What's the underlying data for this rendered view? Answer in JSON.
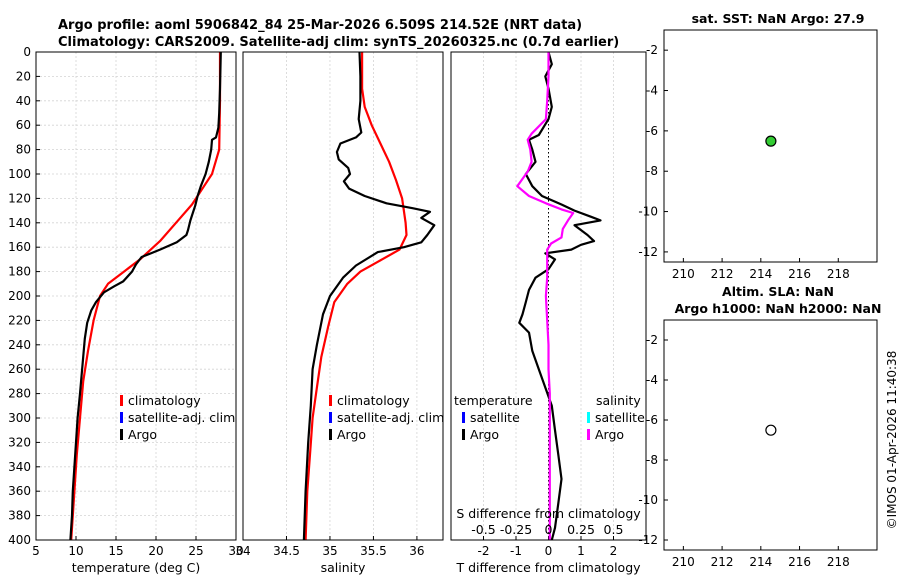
{
  "page": {
    "title_line1": "Argo profile: aoml 5906842_84 25-Mar-2026 6.509S 214.52E (NRT data)",
    "title_line2": "Climatology: CARS2009. Satellite-adj clim: synTS_20260325.nc (0.7d earlier)",
    "timestamp": "©IMOS 01-Apr-2026 11:40:38"
  },
  "colors": {
    "argo": "#000000",
    "climatology": "#ff0000",
    "satellite": "#0000ff",
    "salinity_diff": "#ff00ff",
    "satellite_sal": "#00ffff",
    "sst_marker": "#33cc33"
  },
  "chart_data": [
    {
      "id": "temperature",
      "type": "line",
      "xlabel": "temperature (deg C)",
      "ylabel": "",
      "xlim": [
        5,
        30
      ],
      "ylim": [
        400,
        0
      ],
      "x_ticks": [
        5,
        10,
        15,
        20,
        25,
        30
      ],
      "y_ticks": [
        0,
        20,
        40,
        60,
        80,
        100,
        120,
        140,
        160,
        180,
        200,
        220,
        240,
        260,
        280,
        300,
        320,
        340,
        360,
        380,
        400
      ],
      "legend": [
        "climatology",
        "satellite-adj. clim",
        "Argo"
      ],
      "series": [
        {
          "name": "climatology",
          "points": [
            [
              28.0,
              0
            ],
            [
              28.0,
              40
            ],
            [
              27.9,
              80
            ],
            [
              27.0,
              100
            ],
            [
              26.0,
              110
            ],
            [
              24.5,
              125
            ],
            [
              22.5,
              140
            ],
            [
              20.5,
              155
            ],
            [
              18.0,
              170
            ],
            [
              16.0,
              180
            ],
            [
              14.0,
              190
            ],
            [
              13.0,
              200
            ],
            [
              12.2,
              220
            ],
            [
              11.5,
              245
            ],
            [
              10.9,
              270
            ],
            [
              10.5,
              300
            ],
            [
              10.1,
              330
            ],
            [
              9.8,
              360
            ],
            [
              9.6,
              380
            ],
            [
              9.4,
              400
            ]
          ]
        },
        {
          "name": "Argo",
          "points": [
            [
              28.1,
              0
            ],
            [
              28.0,
              30
            ],
            [
              27.9,
              50
            ],
            [
              27.8,
              62
            ],
            [
              27.5,
              70
            ],
            [
              27.0,
              72
            ],
            [
              26.9,
              80
            ],
            [
              26.6,
              90
            ],
            [
              26.2,
              100
            ],
            [
              25.6,
              110
            ],
            [
              25.2,
              118
            ],
            [
              24.9,
              126
            ],
            [
              24.6,
              132
            ],
            [
              24.3,
              138
            ],
            [
              24.0,
              146
            ],
            [
              23.8,
              150
            ],
            [
              22.6,
              156
            ],
            [
              20.5,
              162
            ],
            [
              19.0,
              166
            ],
            [
              18.2,
              168
            ],
            [
              17.5,
              174
            ],
            [
              17.0,
              180
            ],
            [
              15.9,
              188
            ],
            [
              14.8,
              192
            ],
            [
              13.5,
              197
            ],
            [
              12.5,
              205
            ],
            [
              11.9,
              212
            ],
            [
              11.4,
              222
            ],
            [
              11.1,
              235
            ],
            [
              10.9,
              250
            ],
            [
              10.7,
              265
            ],
            [
              10.5,
              280
            ],
            [
              10.2,
              300
            ],
            [
              10.0,
              320
            ],
            [
              9.8,
              340
            ],
            [
              9.6,
              360
            ],
            [
              9.5,
              380
            ],
            [
              9.3,
              400
            ]
          ]
        }
      ]
    },
    {
      "id": "salinity",
      "type": "line",
      "xlabel": "salinity",
      "xlim": [
        34,
        36.3
      ],
      "ylim": [
        400,
        0
      ],
      "x_ticks": [
        34,
        34.5,
        35,
        35.5,
        36
      ],
      "legend": [
        "climatology",
        "satellite-adj. clim",
        "Argo"
      ],
      "series": [
        {
          "name": "climatology",
          "points": [
            [
              35.37,
              0
            ],
            [
              35.37,
              30
            ],
            [
              35.4,
              45
            ],
            [
              35.48,
              60
            ],
            [
              35.58,
              75
            ],
            [
              35.68,
              90
            ],
            [
              35.76,
              105
            ],
            [
              35.83,
              120
            ],
            [
              35.87,
              140
            ],
            [
              35.88,
              150
            ],
            [
              35.8,
              162
            ],
            [
              35.55,
              172
            ],
            [
              35.35,
              180
            ],
            [
              35.2,
              190
            ],
            [
              35.05,
              205
            ],
            [
              34.98,
              225
            ],
            [
              34.9,
              250
            ],
            [
              34.85,
              275
            ],
            [
              34.8,
              300
            ],
            [
              34.77,
              330
            ],
            [
              34.74,
              360
            ],
            [
              34.72,
              400
            ]
          ]
        },
        {
          "name": "Argo",
          "points": [
            [
              35.34,
              0
            ],
            [
              35.35,
              20
            ],
            [
              35.35,
              40
            ],
            [
              35.33,
              55
            ],
            [
              35.36,
              66
            ],
            [
              35.3,
              70
            ],
            [
              35.12,
              75
            ],
            [
              35.08,
              82
            ],
            [
              35.1,
              88
            ],
            [
              35.21,
              95
            ],
            [
              35.23,
              100
            ],
            [
              35.16,
              106
            ],
            [
              35.22,
              112
            ],
            [
              35.4,
              118
            ],
            [
              35.65,
              124
            ],
            [
              35.95,
              128
            ],
            [
              36.15,
              131
            ],
            [
              36.05,
              136
            ],
            [
              36.2,
              142
            ],
            [
              36.12,
              150
            ],
            [
              36.05,
              156
            ],
            [
              35.85,
              160
            ],
            [
              35.55,
              164
            ],
            [
              35.3,
              175
            ],
            [
              35.15,
              185
            ],
            [
              35.0,
              200
            ],
            [
              34.92,
              215
            ],
            [
              34.85,
              240
            ],
            [
              34.8,
              260
            ],
            [
              34.78,
              290
            ],
            [
              34.75,
              320
            ],
            [
              34.72,
              360
            ],
            [
              34.7,
              400
            ]
          ]
        }
      ]
    },
    {
      "id": "difference",
      "type": "line",
      "xlabel": "T difference from climatology",
      "x2label": "S difference from climatology",
      "xlim": [
        -3,
        3
      ],
      "x2lim": [
        -0.75,
        0.75
      ],
      "ylim": [
        400,
        0
      ],
      "x_ticks": [
        -2,
        -1,
        0,
        1,
        2
      ],
      "x2_ticks": [
        -0.5,
        -0.25,
        0,
        0.25,
        0.5
      ],
      "x2_tick_labels": [
        "-0.5",
        "-0.25",
        "0",
        "0.25",
        "0.5"
      ],
      "legend_temperature_title": "temperature",
      "legend_salinity_title": "salinity",
      "legend": [
        "satellite",
        "Argo",
        "satellite",
        "Argo"
      ],
      "series": [
        {
          "name": "T difference (Argo)",
          "axis": "T",
          "points": [
            [
              0.0,
              0
            ],
            [
              0.1,
              10
            ],
            [
              -0.1,
              20
            ],
            [
              0.0,
              30
            ],
            [
              0.1,
              45
            ],
            [
              0.0,
              55
            ],
            [
              -0.3,
              68
            ],
            [
              -0.6,
              72
            ],
            [
              -0.5,
              80
            ],
            [
              -0.4,
              90
            ],
            [
              -0.7,
              100
            ],
            [
              -0.5,
              110
            ],
            [
              -0.2,
              118
            ],
            [
              0.4,
              125
            ],
            [
              0.8,
              130
            ],
            [
              1.3,
              135
            ],
            [
              1.6,
              138
            ],
            [
              0.8,
              142
            ],
            [
              1.2,
              150
            ],
            [
              1.4,
              155
            ],
            [
              1.0,
              158
            ],
            [
              0.7,
              162
            ],
            [
              -0.1,
              165
            ],
            [
              0.2,
              170
            ],
            [
              0.0,
              178
            ],
            [
              -0.4,
              185
            ],
            [
              -0.6,
              195
            ],
            [
              -0.7,
              205
            ],
            [
              -0.8,
              215
            ],
            [
              -0.9,
              222
            ],
            [
              -0.6,
              230
            ],
            [
              -0.5,
              245
            ],
            [
              -0.3,
              260
            ],
            [
              -0.1,
              275
            ],
            [
              0.1,
              290
            ],
            [
              0.2,
              310
            ],
            [
              0.3,
              330
            ],
            [
              0.4,
              350
            ],
            [
              0.3,
              370
            ],
            [
              0.2,
              390
            ],
            [
              0.1,
              400
            ]
          ]
        },
        {
          "name": "S difference (Argo)",
          "axis": "S",
          "points": [
            [
              0.0,
              0
            ],
            [
              0.0,
              20
            ],
            [
              -0.01,
              40
            ],
            [
              -0.02,
              55
            ],
            [
              -0.13,
              67
            ],
            [
              -0.16,
              72
            ],
            [
              -0.14,
              80
            ],
            [
              -0.13,
              90
            ],
            [
              -0.16,
              98
            ],
            [
              -0.2,
              104
            ],
            [
              -0.24,
              110
            ],
            [
              -0.15,
              118
            ],
            [
              -0.02,
              124
            ],
            [
              0.1,
              129
            ],
            [
              0.19,
              132
            ],
            [
              0.15,
              138
            ],
            [
              0.11,
              145
            ],
            [
              0.1,
              152
            ],
            [
              0.02,
              157
            ],
            [
              -0.01,
              162
            ],
            [
              -0.01,
              170
            ],
            [
              -0.01,
              185
            ],
            [
              -0.02,
              200
            ],
            [
              -0.01,
              220
            ],
            [
              0.0,
              240
            ],
            [
              0.0,
              260
            ],
            [
              0.01,
              280
            ],
            [
              0.01,
              300
            ],
            [
              0.01,
              320
            ],
            [
              0.01,
              340
            ],
            [
              0.01,
              360
            ],
            [
              0.01,
              380
            ],
            [
              0.01,
              400
            ]
          ]
        }
      ]
    },
    {
      "id": "sst",
      "type": "scatter",
      "title": "sat. SST: NaN Argo: 27.9",
      "xlim": [
        209,
        220
      ],
      "ylim": [
        -12.5,
        -1
      ],
      "x_ticks": [
        210,
        212,
        214,
        216,
        218
      ],
      "y_ticks": [
        -2,
        -4,
        -6,
        -8,
        -10,
        -12
      ],
      "points": [
        {
          "x": 214.52,
          "y": -6.509,
          "fill": "green"
        }
      ]
    },
    {
      "id": "sla",
      "type": "scatter",
      "title_line1": "Altim. SLA: NaN",
      "title_line2": "Argo h1000: NaN h2000: NaN",
      "xlim": [
        209,
        220
      ],
      "ylim": [
        -12.5,
        -1
      ],
      "x_ticks": [
        210,
        212,
        214,
        216,
        218
      ],
      "y_ticks": [
        -2,
        -4,
        -6,
        -8,
        -10,
        -12
      ],
      "points": [
        {
          "x": 214.52,
          "y": -6.509,
          "fill": "white"
        }
      ]
    }
  ]
}
